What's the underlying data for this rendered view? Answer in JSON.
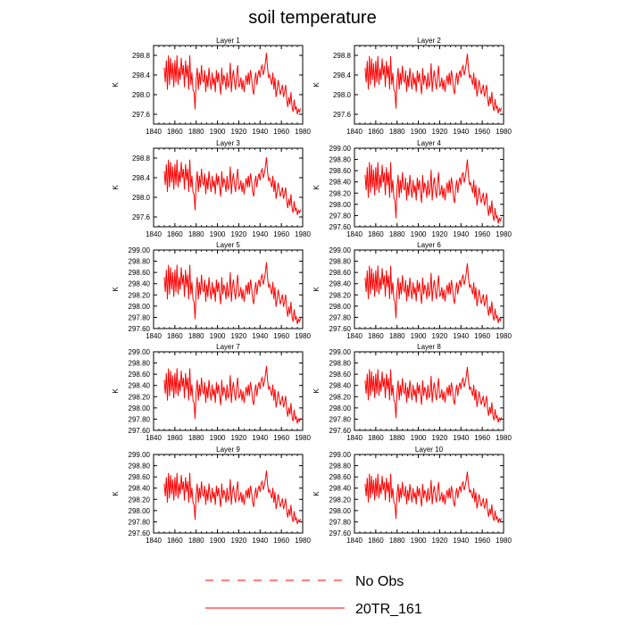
{
  "figure": {
    "title": "soil temperature",
    "legend": [
      {
        "label": "No Obs",
        "color": "#ff0000",
        "dash": "dashed"
      },
      {
        "label": "20TR_161",
        "color": "#ff0000",
        "dash": "solid"
      }
    ]
  },
  "chart_data": [
    {
      "type": "line",
      "title": "Layer 1",
      "ylabel": "K",
      "xlim": [
        1840,
        1980
      ],
      "ylim": [
        297.4,
        299.0
      ],
      "xticks": [
        1840,
        1860,
        1880,
        1900,
        1920,
        1940,
        1960,
        1980
      ],
      "yticks": [
        297.6,
        298.0,
        298.4,
        298.8
      ],
      "ytick_labels": [
        "297.6",
        "298.0",
        "298.4",
        "298.8"
      ],
      "series_name": "20TR_161",
      "x_start": 1850,
      "x_end": 1978
    },
    {
      "type": "line",
      "title": "Layer 2",
      "ylabel": "K",
      "xlim": [
        1840,
        1980
      ],
      "ylim": [
        297.4,
        299.0
      ],
      "xticks": [
        1840,
        1860,
        1880,
        1900,
        1920,
        1940,
        1960,
        1980
      ],
      "yticks": [
        297.6,
        298.0,
        298.4,
        298.8
      ],
      "ytick_labels": [
        "297.6",
        "298.0",
        "298.4",
        "298.8"
      ],
      "series_name": "20TR_161",
      "x_start": 1850,
      "x_end": 1978
    },
    {
      "type": "line",
      "title": "Layer 3",
      "ylabel": "K",
      "xlim": [
        1840,
        1980
      ],
      "ylim": [
        297.4,
        299.0
      ],
      "xticks": [
        1840,
        1860,
        1880,
        1900,
        1920,
        1940,
        1960,
        1980
      ],
      "yticks": [
        297.6,
        298.0,
        298.4,
        298.8
      ],
      "ytick_labels": [
        "297.6",
        "298.0",
        "298.4",
        "298.8"
      ],
      "series_name": "20TR_161",
      "x_start": 1850,
      "x_end": 1978
    },
    {
      "type": "line",
      "title": "Layer 4",
      "ylabel": "K",
      "xlim": [
        1840,
        1980
      ],
      "ylim": [
        297.6,
        299.0
      ],
      "xticks": [
        1840,
        1860,
        1880,
        1900,
        1920,
        1940,
        1960,
        1980
      ],
      "yticks": [
        297.6,
        297.8,
        298.0,
        298.2,
        298.4,
        298.6,
        298.8,
        299.0
      ],
      "ytick_labels": [
        "297.60",
        "297.80",
        "298.00",
        "298.20",
        "298.40",
        "298.60",
        "298.80",
        "299.00"
      ],
      "series_name": "20TR_161",
      "x_start": 1850,
      "x_end": 1978
    },
    {
      "type": "line",
      "title": "Layer 5",
      "ylabel": "K",
      "xlim": [
        1840,
        1980
      ],
      "ylim": [
        297.6,
        299.0
      ],
      "xticks": [
        1840,
        1860,
        1880,
        1900,
        1920,
        1940,
        1960,
        1980
      ],
      "yticks": [
        297.6,
        297.8,
        298.0,
        298.2,
        298.4,
        298.6,
        298.8,
        299.0
      ],
      "ytick_labels": [
        "297.60",
        "297.80",
        "298.00",
        "298.20",
        "298.40",
        "298.60",
        "298.80",
        "299.00"
      ],
      "series_name": "20TR_161",
      "x_start": 1850,
      "x_end": 1978
    },
    {
      "type": "line",
      "title": "Layer 6",
      "ylabel": "K",
      "xlim": [
        1840,
        1980
      ],
      "ylim": [
        297.6,
        299.0
      ],
      "xticks": [
        1840,
        1860,
        1880,
        1900,
        1920,
        1940,
        1960,
        1980
      ],
      "yticks": [
        297.6,
        297.8,
        298.0,
        298.2,
        298.4,
        298.6,
        298.8,
        299.0
      ],
      "ytick_labels": [
        "297.60",
        "297.80",
        "298.00",
        "298.20",
        "298.40",
        "298.60",
        "298.80",
        "299.00"
      ],
      "series_name": "20TR_161",
      "x_start": 1850,
      "x_end": 1978
    },
    {
      "type": "line",
      "title": "Layer 7",
      "ylabel": "K",
      "xlim": [
        1840,
        1980
      ],
      "ylim": [
        297.6,
        299.0
      ],
      "xticks": [
        1840,
        1860,
        1880,
        1900,
        1920,
        1940,
        1960,
        1980
      ],
      "yticks": [
        297.6,
        297.8,
        298.0,
        298.2,
        298.4,
        298.6,
        298.8,
        299.0
      ],
      "ytick_labels": [
        "297.60",
        "297.80",
        "298.00",
        "298.20",
        "298.40",
        "298.60",
        "298.80",
        "299.00"
      ],
      "series_name": "20TR_161",
      "x_start": 1850,
      "x_end": 1978
    },
    {
      "type": "line",
      "title": "Layer 8",
      "ylabel": "K",
      "xlim": [
        1840,
        1980
      ],
      "ylim": [
        297.6,
        299.0
      ],
      "xticks": [
        1840,
        1860,
        1880,
        1900,
        1920,
        1940,
        1960,
        1980
      ],
      "yticks": [
        297.6,
        297.8,
        298.0,
        298.2,
        298.4,
        298.6,
        298.8,
        299.0
      ],
      "ytick_labels": [
        "297.60",
        "297.80",
        "298.00",
        "298.20",
        "298.40",
        "298.60",
        "298.80",
        "299.00"
      ],
      "series_name": "20TR_161",
      "x_start": 1850,
      "x_end": 1978
    },
    {
      "type": "line",
      "title": "Layer 9",
      "ylabel": "K",
      "xlim": [
        1840,
        1980
      ],
      "ylim": [
        297.6,
        299.0
      ],
      "xticks": [
        1840,
        1860,
        1880,
        1900,
        1920,
        1940,
        1960,
        1980
      ],
      "yticks": [
        297.6,
        297.8,
        298.0,
        298.2,
        298.4,
        298.6,
        298.8,
        299.0
      ],
      "ytick_labels": [
        "297.60",
        "297.80",
        "298.00",
        "298.20",
        "298.40",
        "298.60",
        "298.80",
        "299.00"
      ],
      "series_name": "20TR_161",
      "x_start": 1850,
      "x_end": 1978
    },
    {
      "type": "line",
      "title": "Layer 10",
      "ylabel": "K",
      "xlim": [
        1840,
        1980
      ],
      "ylim": [
        297.6,
        299.0
      ],
      "xticks": [
        1840,
        1860,
        1880,
        1900,
        1920,
        1940,
        1960,
        1980
      ],
      "yticks": [
        297.6,
        297.8,
        298.0,
        298.2,
        298.4,
        298.6,
        298.8,
        299.0
      ],
      "ytick_labels": [
        "297.60",
        "297.80",
        "298.00",
        "298.20",
        "298.40",
        "298.60",
        "298.80",
        "299.00"
      ],
      "series_name": "20TR_161",
      "x_start": 1850,
      "x_end": 1978
    }
  ],
  "series_values": [
    298.55,
    298.25,
    298.7,
    298.1,
    298.8,
    298.2,
    298.75,
    298.3,
    298.65,
    298.15,
    298.7,
    298.25,
    298.8,
    298.2,
    298.55,
    298.3,
    298.75,
    298.4,
    298.6,
    298.15,
    298.7,
    298.35,
    298.6,
    298.1,
    298.8,
    298.2,
    298.45,
    298.1,
    298.05,
    297.7,
    298.3,
    298.55,
    298.1,
    298.45,
    298.2,
    298.6,
    298.3,
    298.25,
    298.5,
    298.05,
    298.4,
    298.15,
    298.55,
    298.3,
    298.1,
    298.45,
    298.2,
    298.35,
    298.05,
    298.5,
    298.25,
    298.45,
    298.2,
    298.0,
    298.55,
    298.2,
    298.4,
    298.3,
    298.1,
    298.45,
    298.15,
    298.25,
    298.65,
    298.05,
    298.35,
    298.5,
    298.25,
    298.1,
    298.4,
    298.6,
    298.15,
    298.2,
    298.35,
    298.1,
    298.3,
    298.05,
    298.25,
    298.4,
    298.2,
    298.45,
    298.2,
    298.5,
    298.35,
    298.1,
    298.0,
    298.3,
    298.45,
    298.2,
    298.4,
    298.5,
    298.35,
    298.55,
    298.6,
    298.4,
    298.5,
    298.65,
    298.85,
    298.55,
    298.35,
    298.4,
    298.3,
    298.2,
    298.45,
    298.1,
    298.35,
    297.95,
    298.1,
    298.3,
    298.15,
    298.0,
    298.1,
    298.2,
    297.95,
    298.05,
    298.2,
    297.9,
    297.75,
    297.95,
    297.8,
    298.05,
    297.75,
    297.65,
    297.9,
    297.7,
    297.75,
    297.6,
    297.7,
    297.65,
    297.72
  ]
}
